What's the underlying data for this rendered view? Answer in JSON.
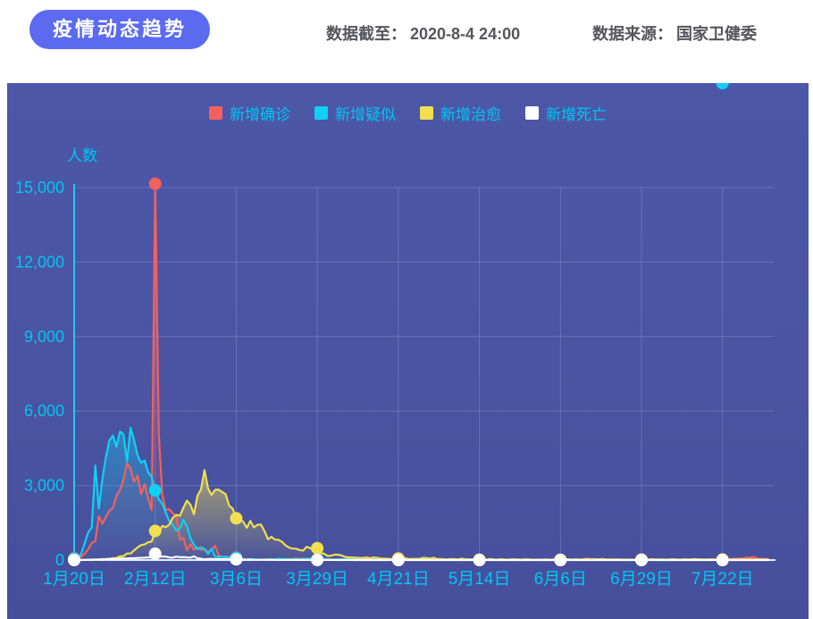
{
  "header": {
    "title_badge": "疫情动态趋势",
    "cutoff_label": "数据截至：",
    "cutoff_value": "2020-8-4 24:00",
    "source_label": "数据来源：",
    "source_value": "国家卫健委"
  },
  "theme": {
    "badge_bg": "#5b6af0",
    "panel_bg_top": "#4c57a8",
    "panel_bg_bottom": "#454f9c",
    "label_color": "#00c6f2",
    "grid_color": "rgba(136,150,216,0.45)",
    "axis_y_color": "#29c6f3",
    "axis_x_color": "#e3eaff",
    "header_text_color": "#55555c",
    "series_colors": [
      "#f4605e",
      "#0fd0f5",
      "#f2df4f",
      "#ffffff"
    ]
  },
  "chart_data": {
    "type": "line",
    "title": "疫情动态趋势",
    "ylabel": "人数",
    "y_max": 15000,
    "y_ticks": [
      0,
      3000,
      6000,
      9000,
      12000,
      15000
    ],
    "grid": true,
    "legend_position": "top",
    "days_total": 198,
    "x_start": "1月20日",
    "x_end": "8月4日",
    "x_tick_labels": [
      "1月20日",
      "2月12日",
      "3月6日",
      "3月29日",
      "4月21日",
      "5月14日",
      "6月6日",
      "6月29日",
      "7月22日"
    ],
    "x_tick_day_indices": [
      0,
      23,
      46,
      69,
      92,
      115,
      138,
      161,
      184
    ],
    "series": [
      {
        "name": "新增确诊",
        "color": "#f4605e",
        "values": [
          77,
          149,
          131,
          259,
          444,
          688,
          769,
          1771,
          1459,
          1737,
          1982,
          2102,
          2590,
          2829,
          3235,
          3887,
          3694,
          3143,
          3399,
          2656,
          3062,
          2478,
          2015,
          15152,
          5090,
          2641,
          2009,
          2048,
          1886,
          1749,
          820,
          889,
          397,
          648,
          409,
          508,
          406,
          433,
          327,
          427,
          573,
          202,
          125,
          119,
          139,
          143,
          99,
          44,
          40,
          19,
          24,
          15,
          8,
          11,
          20,
          16,
          21,
          13,
          34,
          39,
          41,
          46,
          39,
          78,
          47,
          67,
          55,
          54,
          45,
          31,
          48,
          36,
          35,
          31,
          19,
          30,
          39,
          32,
          62,
          63,
          42,
          46,
          99,
          108,
          89,
          46,
          46,
          26,
          27,
          16,
          12,
          30,
          10,
          10,
          6,
          12,
          11,
          3,
          6,
          22,
          4,
          12,
          1,
          2,
          3,
          1,
          2,
          2,
          1,
          1,
          14,
          17,
          1,
          7,
          3,
          4,
          8,
          5,
          7,
          6,
          5,
          2,
          4,
          2,
          3,
          11,
          7,
          1,
          2,
          0,
          4,
          2,
          16,
          5,
          1,
          1,
          5,
          3,
          6,
          4,
          3,
          3,
          11,
          7,
          11,
          57,
          49,
          40,
          44,
          28,
          32,
          27,
          26,
          18,
          22,
          12,
          21,
          13,
          17,
          14,
          12,
          19,
          3,
          5,
          3,
          8,
          8,
          4,
          8,
          7,
          9,
          4,
          2,
          7,
          8,
          10,
          6,
          11,
          10,
          22,
          16,
          13,
          11,
          14,
          22,
          21,
          34,
          46,
          61,
          57,
          68,
          101,
          105,
          127,
          45,
          49,
          43,
          27
        ]
      },
      {
        "name": "新增疑似",
        "color": "#0fd0f5",
        "values": [
          54,
          53,
          257,
          680,
          1118,
          1309,
          3806,
          2077,
          3248,
          4148,
          4812,
          5019,
          4562,
          5173,
          5072,
          3971,
          5328,
          4833,
          4214,
          3916,
          4008,
          3536,
          3342,
          2807,
          2450,
          2277,
          1918,
          1563,
          1432,
          1185,
          1277,
          1614,
          1361,
          882,
          620,
          439,
          508,
          452,
          248,
          452,
          141,
          129,
          129,
          143,
          102,
          99,
          84,
          50,
          36,
          17,
          31,
          33,
          23,
          10,
          16,
          29,
          37,
          21,
          53,
          31,
          39,
          25,
          36,
          35,
          33,
          50,
          58,
          39,
          28,
          24,
          35,
          42,
          26,
          24,
          18,
          25,
          31,
          30,
          31,
          44,
          29,
          21,
          34,
          24,
          21,
          34,
          37,
          29,
          21,
          31,
          18,
          25,
          17,
          14,
          14,
          18,
          9,
          13,
          9,
          13,
          5,
          3,
          2,
          4,
          6,
          3,
          5,
          2,
          3,
          4,
          2,
          8,
          5,
          3,
          6,
          2,
          4,
          3,
          2,
          5,
          1,
          3,
          2,
          4,
          3,
          2,
          1,
          3,
          2,
          4,
          6,
          2,
          3,
          1,
          2,
          3,
          5,
          2,
          4,
          3,
          2,
          6,
          4,
          7,
          10,
          8,
          6,
          5,
          7,
          4,
          3,
          2,
          3,
          4,
          2,
          3,
          2,
          1,
          2,
          3,
          1,
          2,
          3,
          2,
          4,
          2,
          3,
          1,
          2,
          1,
          3,
          2,
          4,
          3,
          2,
          3,
          2,
          1,
          2,
          3,
          2,
          3,
          2,
          1
        ]
      },
      {
        "name": "新增治愈",
        "color": "#f2df4f",
        "values": [
          0,
          0,
          0,
          6,
          3,
          11,
          2,
          9,
          43,
          21,
          47,
          72,
          85,
          147,
          157,
          262,
          261,
          387,
          510,
          600,
          632,
          716,
          744,
          1171,
          1081,
          1373,
          1323,
          1425,
          1701,
          1824,
          1779,
          2109,
          2393,
          2230,
          1846,
          2589,
          2848,
          3622,
          2885,
          2623,
          2830,
          2837,
          2742,
          2652,
          2189,
          2070,
          1681,
          1661,
          1535,
          1297,
          1578,
          1318,
          1418,
          1430,
          1170,
          838,
          930,
          819,
          815,
          730,
          590,
          504,
          459,
          456,
          401,
          381,
          537,
          477,
          383,
          477,
          282,
          252,
          157,
          179,
          221,
          213,
          180,
          122,
          110,
          106,
          92,
          85,
          83,
          97,
          64,
          103,
          88,
          66,
          56,
          51,
          48,
          58,
          62,
          54,
          77,
          38,
          48,
          45,
          46,
          89,
          79,
          60,
          93,
          44,
          38,
          33,
          28,
          41,
          36,
          25,
          62,
          28,
          31,
          22,
          26,
          16,
          23,
          15,
          43,
          26,
          14,
          31,
          21,
          12,
          29,
          27,
          20,
          15,
          34,
          25,
          16,
          14,
          12,
          18,
          25,
          13,
          22,
          16,
          9,
          22,
          31,
          18,
          25,
          27,
          16,
          29,
          36,
          22,
          33,
          27,
          42,
          18,
          22,
          19,
          20,
          18,
          16,
          19,
          13,
          12,
          22,
          17,
          14,
          25,
          31,
          20,
          22,
          23,
          13,
          21,
          33,
          24,
          16,
          30,
          26,
          22,
          35,
          28,
          30,
          19,
          25,
          31,
          24,
          20,
          22,
          28,
          24,
          30,
          26,
          22,
          28,
          24,
          30,
          26,
          24,
          28,
          22,
          25
        ]
      },
      {
        "name": "新增死亡",
        "color": "#ffffff",
        "values": [
          2,
          3,
          8,
          8,
          16,
          15,
          24,
          26,
          26,
          38,
          43,
          46,
          45,
          57,
          64,
          65,
          73,
          73,
          86,
          89,
          97,
          108,
          97,
          254,
          121,
          143,
          142,
          105,
          98,
          136,
          114,
          118,
          109,
          97,
          150,
          71,
          52,
          29,
          44,
          47,
          35,
          42,
          31,
          38,
          31,
          30,
          28,
          27,
          22,
          17,
          22,
          11,
          7,
          13,
          10,
          14,
          13,
          11,
          8,
          3,
          7,
          6,
          9,
          7,
          4,
          6,
          5,
          3,
          5,
          4,
          1,
          5,
          6,
          4,
          4,
          3,
          1,
          2,
          2,
          2,
          1,
          3,
          0,
          2,
          1,
          0,
          1,
          0,
          0,
          0,
          0,
          2,
          0,
          0,
          1,
          0,
          0,
          1,
          0,
          0,
          0,
          0,
          0,
          0,
          0,
          0,
          0,
          0,
          0,
          0,
          0,
          0,
          0,
          0,
          0,
          0,
          0,
          0,
          0,
          0,
          0,
          0,
          0,
          0,
          0,
          0,
          0,
          0,
          0,
          0,
          0,
          0,
          0,
          0,
          0,
          0,
          0,
          0,
          0,
          0,
          0,
          0,
          0,
          0,
          0,
          0,
          0,
          0,
          0,
          0,
          0,
          0,
          0,
          0,
          0,
          0,
          0,
          0,
          0,
          0,
          0,
          0,
          0,
          0,
          0,
          0,
          0,
          0,
          0,
          0,
          0,
          0,
          0,
          0,
          0,
          0,
          0,
          0,
          0,
          0,
          0,
          0,
          0,
          0,
          0,
          0,
          0,
          0,
          0,
          0,
          0,
          0,
          0,
          0,
          0,
          0,
          0,
          0
        ]
      }
    ]
  }
}
